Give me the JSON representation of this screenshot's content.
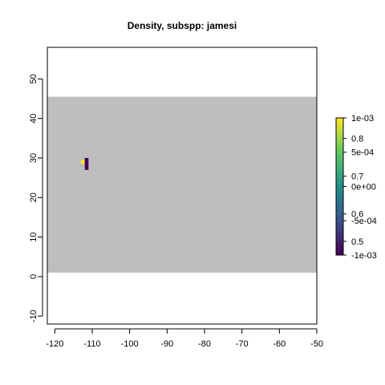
{
  "chart_data": {
    "type": "heatmap",
    "title": "Density, subspp: jamesi",
    "xlabel": "",
    "ylabel": "",
    "xlim": [
      -122,
      -50
    ],
    "ylim": [
      -12,
      58
    ],
    "x_ticks": [
      -120,
      -110,
      -100,
      -90,
      -80,
      -70,
      -60,
      -50
    ],
    "y_ticks": [
      -10,
      0,
      10,
      20,
      30,
      40,
      50
    ],
    "grid": false,
    "background_region": {
      "x": [
        -122,
        -50
      ],
      "y": [
        1,
        45.5
      ],
      "color": "#bebebe"
    },
    "cells": [
      {
        "x": [
          -113,
          -112
        ],
        "y": [
          28.5,
          29.5
        ],
        "value": 0.001,
        "color": "#fde725"
      },
      {
        "x": [
          -112,
          -111
        ],
        "y": [
          29,
          30
        ],
        "value": -0.001,
        "color": "#440154"
      },
      {
        "x": [
          -112,
          -111
        ],
        "y": [
          28,
          29
        ],
        "value": -0.001,
        "color": "#440154"
      },
      {
        "x": [
          -112,
          -111
        ],
        "y": [
          27,
          28
        ],
        "value": -0.001,
        "color": "#440154"
      }
    ],
    "legend": {
      "placement": "right",
      "colors": [
        "#440154",
        "#3b528b",
        "#21908d",
        "#5dc963",
        "#fde725"
      ],
      "range": [
        -0.001,
        0.001
      ],
      "right_labels": [
        "1e-03",
        "5e-04",
        "0e+00",
        "-5e-04",
        "-1e-03"
      ],
      "right_values": [
        0.001,
        0.0005,
        0,
        -0.0005,
        -0.001
      ],
      "left_labels": [
        "0.8",
        "0.7",
        "0.6",
        "0.5"
      ],
      "left_values": [
        0.0007,
        0.00015,
        -0.0004,
        -0.0008
      ]
    }
  }
}
